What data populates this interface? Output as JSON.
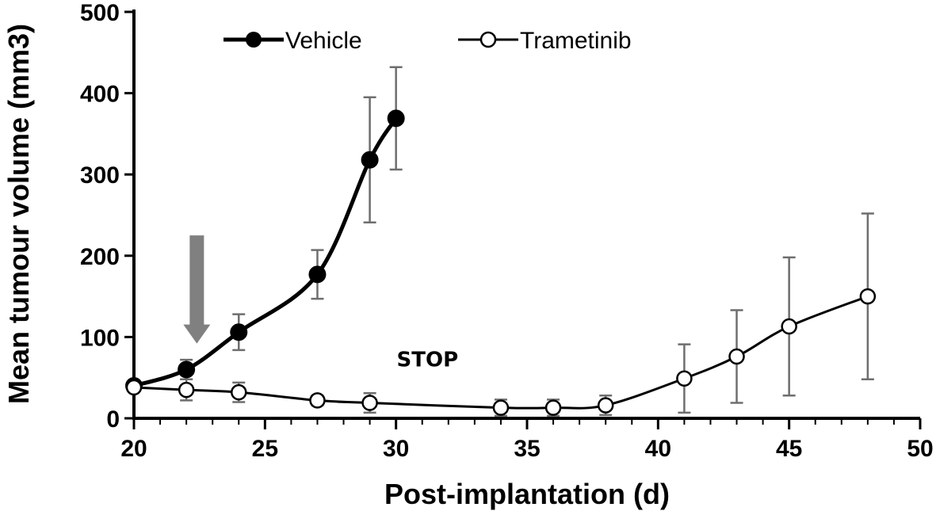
{
  "chart_data": {
    "type": "line",
    "title": "",
    "xlabel": "Post-implantation (d)",
    "ylabel": "Mean tumour volume (mm3)",
    "xlim": [
      20,
      50
    ],
    "ylim": [
      0,
      500
    ],
    "x_ticks": [
      20,
      25,
      30,
      35,
      40,
      45,
      50
    ],
    "y_ticks": [
      0,
      100,
      200,
      300,
      400,
      500
    ],
    "x_minor_step": 1,
    "legend": {
      "position": "top-center"
    },
    "series": [
      {
        "name": "Vehicle",
        "marker": "filled-circle",
        "color": "#000000",
        "x": [
          20,
          22,
          24,
          27,
          29,
          30
        ],
        "y": [
          40,
          60,
          106,
          177,
          318,
          369
        ],
        "err": [
          0,
          12,
          22,
          30,
          77,
          63
        ]
      },
      {
        "name": "Trametinib",
        "marker": "open-circle",
        "color": "#000000",
        "x": [
          20,
          22,
          24,
          27,
          29,
          34,
          36,
          38,
          41,
          43,
          45,
          48
        ],
        "y": [
          38,
          35,
          32,
          22,
          19,
          13,
          13,
          16,
          49,
          76,
          113,
          150
        ],
        "err": [
          0,
          13,
          12,
          6,
          12,
          10,
          10,
          12,
          42,
          57,
          85,
          102
        ]
      }
    ],
    "annotations": [
      {
        "type": "arrow",
        "label": "",
        "x": 22.4,
        "y_top": 225,
        "y_bottom": 92,
        "color": "#808080"
      },
      {
        "type": "text",
        "label": "STOP",
        "x": 31.2,
        "y": 64
      }
    ]
  }
}
